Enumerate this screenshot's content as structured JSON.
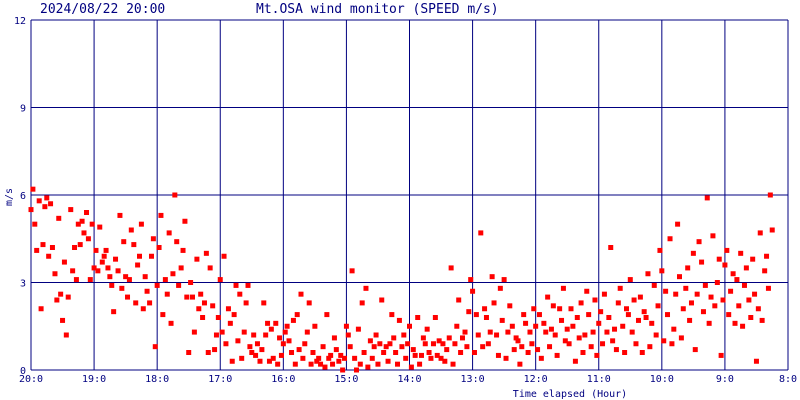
{
  "header": {
    "timestamp": "2024/08/22 20:00",
    "title": "Mt.OSA wind monitor (SPEED m/s)"
  },
  "colors": {
    "background": "#ffffff",
    "grid": "#000080",
    "text": "#000080",
    "points": "#ff0000"
  },
  "chart_data": {
    "type": "scatter",
    "title": "Mt.OSA wind monitor (SPEED m/s)",
    "xlabel": "Time elapsed (Hour)",
    "ylabel": "m/s",
    "x_ticks": [
      "20:0",
      "19:0",
      "18:0",
      "17:0",
      "16:0",
      "15:0",
      "14:0",
      "13:0",
      "12:0",
      "11:0",
      "10:0",
      "9:0",
      "8:0"
    ],
    "y_ticks": [
      "0",
      "3",
      "6",
      "9",
      "12"
    ],
    "ylim": [
      0,
      12
    ],
    "xlim_hours_elapsed": [
      0,
      12
    ],
    "x_reversed_clock": true,
    "grid": true,
    "series": [
      {
        "color": "#ff0000",
        "marker": "square",
        "x_hours_elapsed": [
          0.0,
          0.03,
          0.06,
          0.09,
          0.13,
          0.16,
          0.19,
          0.22,
          0.25,
          0.28,
          0.31,
          0.34,
          0.38,
          0.41,
          0.44,
          0.47,
          0.5,
          0.53,
          0.56,
          0.59,
          0.63,
          0.66,
          0.69,
          0.72,
          0.75,
          0.78,
          0.81,
          0.84,
          0.88,
          0.91,
          0.94,
          0.97,
          1.0,
          1.03,
          1.06,
          1.09,
          1.13,
          1.16,
          1.19,
          1.22,
          1.25,
          1.28,
          1.31,
          1.34,
          1.38,
          1.41,
          1.44,
          1.47,
          1.5,
          1.53,
          1.56,
          1.59,
          1.63,
          1.66,
          1.69,
          1.72,
          1.75,
          1.78,
          1.81,
          1.84,
          1.88,
          1.91,
          1.94,
          1.97,
          2.0,
          2.03,
          2.06,
          2.09,
          2.13,
          2.16,
          2.19,
          2.22,
          2.25,
          2.28,
          2.31,
          2.34,
          2.38,
          2.41,
          2.44,
          2.47,
          2.5,
          2.53,
          2.56,
          2.59,
          2.63,
          2.66,
          2.69,
          2.72,
          2.75,
          2.78,
          2.81,
          2.84,
          2.88,
          2.91,
          2.94,
          2.97,
          3.0,
          3.03,
          3.06,
          3.09,
          3.13,
          3.16,
          3.19,
          3.22,
          3.25,
          3.28,
          3.31,
          3.34,
          3.38,
          3.41,
          3.44,
          3.47,
          3.5,
          3.53,
          3.56,
          3.59,
          3.63,
          3.66,
          3.69,
          3.72,
          3.75,
          3.78,
          3.81,
          3.84,
          3.88,
          3.91,
          3.94,
          3.97,
          4.0,
          4.03,
          4.06,
          4.09,
          4.13,
          4.16,
          4.19,
          4.22,
          4.25,
          4.28,
          4.31,
          4.34,
          4.38,
          4.41,
          4.44,
          4.47,
          4.5,
          4.53,
          4.56,
          4.59,
          4.63,
          4.66,
          4.69,
          4.72,
          4.75,
          4.78,
          4.81,
          4.84,
          4.88,
          4.91,
          4.94,
          4.97,
          5.0,
          5.03,
          5.06,
          5.09,
          5.13,
          5.16,
          5.19,
          5.22,
          5.25,
          5.28,
          5.31,
          5.34,
          5.38,
          5.41,
          5.44,
          5.47,
          5.5,
          5.53,
          5.56,
          5.59,
          5.63,
          5.66,
          5.69,
          5.72,
          5.75,
          5.78,
          5.81,
          5.84,
          5.88,
          5.91,
          5.94,
          5.97,
          6.0,
          6.03,
          6.06,
          6.09,
          6.13,
          6.16,
          6.19,
          6.22,
          6.25,
          6.28,
          6.31,
          6.34,
          6.38,
          6.41,
          6.44,
          6.47,
          6.5,
          6.53,
          6.56,
          6.59,
          6.63,
          6.66,
          6.69,
          6.72,
          6.75,
          6.78,
          6.81,
          6.84,
          6.88,
          6.91,
          6.94,
          6.97,
          7.0,
          7.03,
          7.06,
          7.09,
          7.13,
          7.16,
          7.19,
          7.22,
          7.25,
          7.28,
          7.31,
          7.34,
          7.38,
          7.41,
          7.44,
          7.47,
          7.5,
          7.53,
          7.56,
          7.59,
          7.63,
          7.66,
          7.69,
          7.72,
          7.75,
          7.78,
          7.81,
          7.84,
          7.88,
          7.91,
          7.94,
          7.97,
          8.0,
          8.03,
          8.06,
          8.09,
          8.13,
          8.16,
          8.19,
          8.22,
          8.25,
          8.28,
          8.31,
          8.34,
          8.38,
          8.41,
          8.44,
          8.47,
          8.5,
          8.53,
          8.56,
          8.59,
          8.63,
          8.66,
          8.69,
          8.72,
          8.75,
          8.78,
          8.81,
          8.84,
          8.88,
          8.91,
          8.94,
          8.97,
          9.0,
          9.03,
          9.06,
          9.09,
          9.13,
          9.16,
          9.19,
          9.22,
          9.25,
          9.28,
          9.31,
          9.34,
          9.38,
          9.41,
          9.44,
          9.47,
          9.5,
          9.53,
          9.56,
          9.59,
          9.63,
          9.66,
          9.69,
          9.72,
          9.75,
          9.78,
          9.81,
          9.84,
          9.88,
          9.91,
          9.94,
          9.97,
          10.0,
          10.03,
          10.06,
          10.09,
          10.13,
          10.16,
          10.19,
          10.22,
          10.25,
          10.28,
          10.31,
          10.34,
          10.38,
          10.41,
          10.44,
          10.47,
          10.5,
          10.53,
          10.56,
          10.59,
          10.63,
          10.66,
          10.69,
          10.72,
          10.75,
          10.78,
          10.81,
          10.84,
          10.88,
          10.91,
          10.94,
          10.97,
          11.0,
          11.03,
          11.06,
          11.09,
          11.13,
          11.16,
          11.19,
          11.22,
          11.25,
          11.28,
          11.31,
          11.34,
          11.38,
          11.41,
          11.44,
          11.47,
          11.5,
          11.53,
          11.56,
          11.59,
          11.63,
          11.66,
          11.69,
          11.72,
          11.75,
          11.78,
          11.81,
          11.84,
          11.88,
          11.91,
          11.94,
          11.97,
          12.0
        ],
        "speed_ms": [
          5.5,
          6.2,
          5.0,
          4.1,
          5.8,
          2.1,
          4.3,
          5.6,
          5.9,
          3.9,
          5.7,
          4.2,
          3.3,
          2.4,
          5.2,
          2.6,
          1.7,
          3.7,
          1.2,
          2.5,
          5.5,
          3.4,
          4.2,
          3.1,
          5.0,
          4.3,
          5.1,
          4.7,
          5.4,
          4.5,
          3.1,
          5.0,
          3.5,
          4.1,
          3.4,
          4.9,
          3.7,
          3.9,
          4.1,
          3.5,
          3.2,
          2.9,
          2.0,
          3.8,
          3.4,
          5.3,
          2.8,
          4.4,
          3.2,
          2.5,
          3.1,
          4.8,
          4.3,
          2.3,
          3.6,
          3.9,
          5.0,
          2.1,
          3.2,
          2.7,
          2.3,
          3.9,
          4.5,
          0.8,
          2.9,
          4.2,
          5.3,
          1.9,
          3.1,
          2.6,
          4.7,
          1.6,
          3.3,
          6.0,
          4.4,
          2.9,
          3.5,
          4.1,
          5.1,
          2.5,
          0.6,
          3.0,
          2.5,
          1.3,
          3.8,
          2.1,
          2.6,
          1.8,
          2.3,
          4.0,
          0.6,
          3.5,
          2.2,
          0.7,
          1.2,
          1.8,
          3.1,
          1.3,
          3.9,
          0.9,
          2.1,
          1.6,
          0.3,
          1.9,
          2.9,
          1.0,
          2.6,
          0.4,
          1.3,
          2.3,
          2.9,
          0.8,
          0.6,
          1.2,
          0.5,
          0.9,
          0.3,
          0.7,
          2.3,
          1.2,
          1.6,
          0.3,
          1.4,
          0.4,
          1.6,
          0.2,
          1.1,
          0.5,
          0.9,
          1.3,
          1.5,
          1.0,
          0.6,
          1.7,
          0.2,
          1.9,
          0.7,
          2.6,
          0.4,
          0.9,
          1.3,
          2.3,
          0.2,
          0.6,
          1.5,
          0.3,
          0.4,
          0.2,
          0.8,
          0.1,
          1.9,
          0.4,
          0.5,
          0.2,
          1.1,
          0.7,
          0.3,
          0.5,
          0.0,
          0.4,
          1.5,
          1.2,
          0.8,
          3.4,
          0.4,
          0.0,
          1.4,
          0.2,
          2.3,
          0.6,
          2.8,
          0.1,
          1.0,
          0.4,
          0.8,
          1.2,
          0.2,
          0.9,
          2.4,
          0.6,
          0.8,
          0.3,
          0.9,
          1.9,
          1.1,
          0.6,
          0.2,
          1.7,
          0.8,
          1.2,
          0.4,
          0.9,
          1.5,
          0.1,
          0.7,
          0.5,
          1.8,
          0.2,
          0.5,
          1.1,
          0.9,
          1.4,
          0.6,
          0.4,
          0.9,
          1.8,
          0.5,
          1.0,
          0.4,
          0.9,
          0.3,
          0.7,
          1.1,
          3.5,
          0.2,
          0.9,
          1.5,
          2.4,
          0.6,
          1.1,
          1.3,
          0.8,
          2.0,
          3.1,
          2.7,
          0.6,
          1.9,
          1.2,
          4.7,
          0.8,
          2.1,
          1.8,
          0.9,
          1.3,
          3.2,
          2.3,
          1.2,
          0.5,
          2.8,
          1.7,
          3.1,
          0.4,
          1.3,
          2.2,
          1.5,
          0.7,
          1.1,
          1.0,
          0.2,
          0.8,
          1.9,
          1.6,
          0.6,
          1.3,
          0.9,
          2.1,
          1.5,
          0.7,
          1.9,
          0.4,
          1.6,
          1.3,
          2.5,
          0.8,
          1.4,
          2.2,
          1.2,
          0.5,
          2.1,
          1.7,
          2.8,
          1.0,
          1.4,
          0.9,
          2.1,
          1.5,
          0.3,
          1.8,
          1.1,
          2.3,
          0.6,
          1.2,
          2.7,
          1.9,
          0.8,
          1.3,
          2.4,
          0.5,
          1.6,
          2.0,
          0.9,
          2.6,
          1.3,
          1.8,
          4.2,
          1.0,
          1.4,
          0.7,
          2.3,
          2.8,
          1.5,
          0.6,
          2.1,
          1.9,
          3.1,
          1.3,
          2.4,
          0.9,
          1.7,
          2.5,
          0.6,
          2.0,
          1.8,
          3.3,
          0.8,
          1.6,
          2.9,
          1.2,
          2.2,
          4.1,
          3.4,
          1.0,
          2.7,
          1.9,
          4.5,
          0.9,
          1.4,
          2.6,
          5.0,
          3.2,
          1.1,
          2.1,
          2.8,
          3.5,
          1.7,
          2.3,
          4.0,
          0.7,
          2.6,
          4.4,
          3.7,
          2.0,
          2.9,
          5.9,
          1.6,
          2.5,
          4.6,
          2.2,
          3.0,
          3.8,
          0.5,
          2.4,
          3.6,
          4.1,
          1.9,
          2.7,
          3.3,
          1.6,
          3.1,
          2.2,
          4.0,
          1.5,
          2.9,
          3.5,
          2.4,
          1.8,
          3.8,
          2.6,
          0.3,
          2.1,
          4.7,
          1.7,
          3.4,
          3.9,
          2.8,
          6.0,
          4.8
        ]
      }
    ]
  },
  "axis_labels": {
    "ylabel": "m/s",
    "xlabel": "Time elapsed (Hour)"
  }
}
